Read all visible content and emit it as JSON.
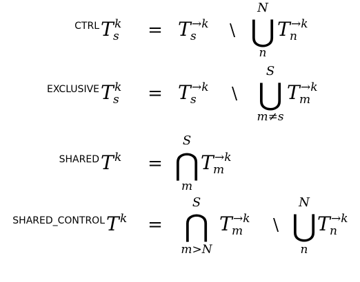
{
  "equations": [
    {
      "prefix": "CTRL",
      "lhs_sym": "T",
      "lhs_sub": "s",
      "lhs_sup": "k",
      "eq": "=",
      "term1_sym": "T",
      "term1_sub": "s",
      "term1_sup": "→k",
      "setminus": "\\",
      "big_op": "⋃",
      "big_top": "N",
      "big_bottom": "n",
      "term2_sym": "T",
      "term2_sub": "n",
      "term2_sup": "→k"
    },
    {
      "prefix": "EXCLUSIVE",
      "lhs_sym": "T",
      "lhs_sub": "s",
      "lhs_sup": "k",
      "eq": "=",
      "term1_sym": "T",
      "term1_sub": "s",
      "term1_sup": "→k",
      "setminus": "\\",
      "big_op": "⋃",
      "big_top": "S",
      "big_bottom": "m≠s",
      "term2_sym": "T",
      "term2_sub": "m",
      "term2_sup": "→k"
    },
    {
      "prefix": "SHARED",
      "lhs_sym": "T",
      "lhs_sup": "k",
      "eq": "=",
      "big_op": "⋂",
      "big_top": "S",
      "big_bottom": "m",
      "term_sym": "T",
      "term_sub": "m",
      "term_sup": "→k"
    },
    {
      "prefix": "SHARED_CONTROL",
      "lhs_sym": "T",
      "lhs_sup": "k",
      "eq": "=",
      "big1_op": "⋂",
      "big1_top": "S",
      "big1_bottom": "m>N",
      "term1_sym": "T",
      "term1_sub": "m",
      "term1_sup": "→k",
      "setminus": "\\",
      "big2_op": "⋃",
      "big2_top": "N",
      "big2_bottom": "n",
      "term2_sym": "T",
      "term2_sub": "n",
      "term2_sup": "→k"
    }
  ]
}
